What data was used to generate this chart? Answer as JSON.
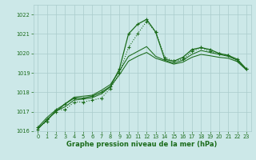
{
  "xlabel": "Graphe pression niveau de la mer (hPa)",
  "x_ticks": [
    0,
    1,
    2,
    3,
    4,
    5,
    6,
    7,
    8,
    9,
    10,
    11,
    12,
    13,
    14,
    15,
    16,
    17,
    18,
    19,
    20,
    21,
    22,
    23
  ],
  "ylim": [
    1016,
    1022.5
  ],
  "yticks": [
    1016,
    1017,
    1018,
    1019,
    1020,
    1021,
    1022
  ],
  "background_color": "#cce8e8",
  "grid_color": "#aacccc",
  "line_color": "#1a6b1a",
  "series": [
    [
      1016.2,
      1016.5,
      1017.1,
      1017.1,
      1017.5,
      1017.5,
      1017.6,
      1017.7,
      1018.2,
      1019.0,
      1020.3,
      1021.0,
      1021.65,
      1021.1,
      1019.8,
      1019.6,
      1019.7,
      1020.1,
      1020.3,
      1020.1,
      1020.0,
      1019.9,
      1019.6,
      1019.2
    ],
    [
      1016.1,
      1016.6,
      1017.0,
      1017.4,
      1017.7,
      1017.7,
      1017.8,
      1018.0,
      1018.3,
      1019.2,
      1021.0,
      1021.5,
      1021.75,
      1021.1,
      1019.7,
      1019.6,
      1019.8,
      1020.2,
      1020.3,
      1020.2,
      1020.0,
      1019.9,
      1019.7,
      1019.2
    ],
    [
      1016.2,
      1016.7,
      1017.1,
      1017.4,
      1017.75,
      1017.8,
      1017.85,
      1018.1,
      1018.4,
      1019.1,
      1019.85,
      1020.1,
      1020.35,
      1019.85,
      1019.65,
      1019.5,
      1019.65,
      1019.95,
      1020.15,
      1020.05,
      1019.95,
      1019.85,
      1019.65,
      1019.2
    ],
    [
      1016.15,
      1016.55,
      1017.05,
      1017.25,
      1017.6,
      1017.65,
      1017.72,
      1017.92,
      1018.28,
      1018.9,
      1019.6,
      1019.85,
      1020.05,
      1019.75,
      1019.6,
      1019.45,
      1019.55,
      1019.8,
      1019.95,
      1019.88,
      1019.8,
      1019.75,
      1019.58,
      1019.15
    ]
  ],
  "xlabel_fontsize": 6.0,
  "tick_fontsize": 4.8
}
